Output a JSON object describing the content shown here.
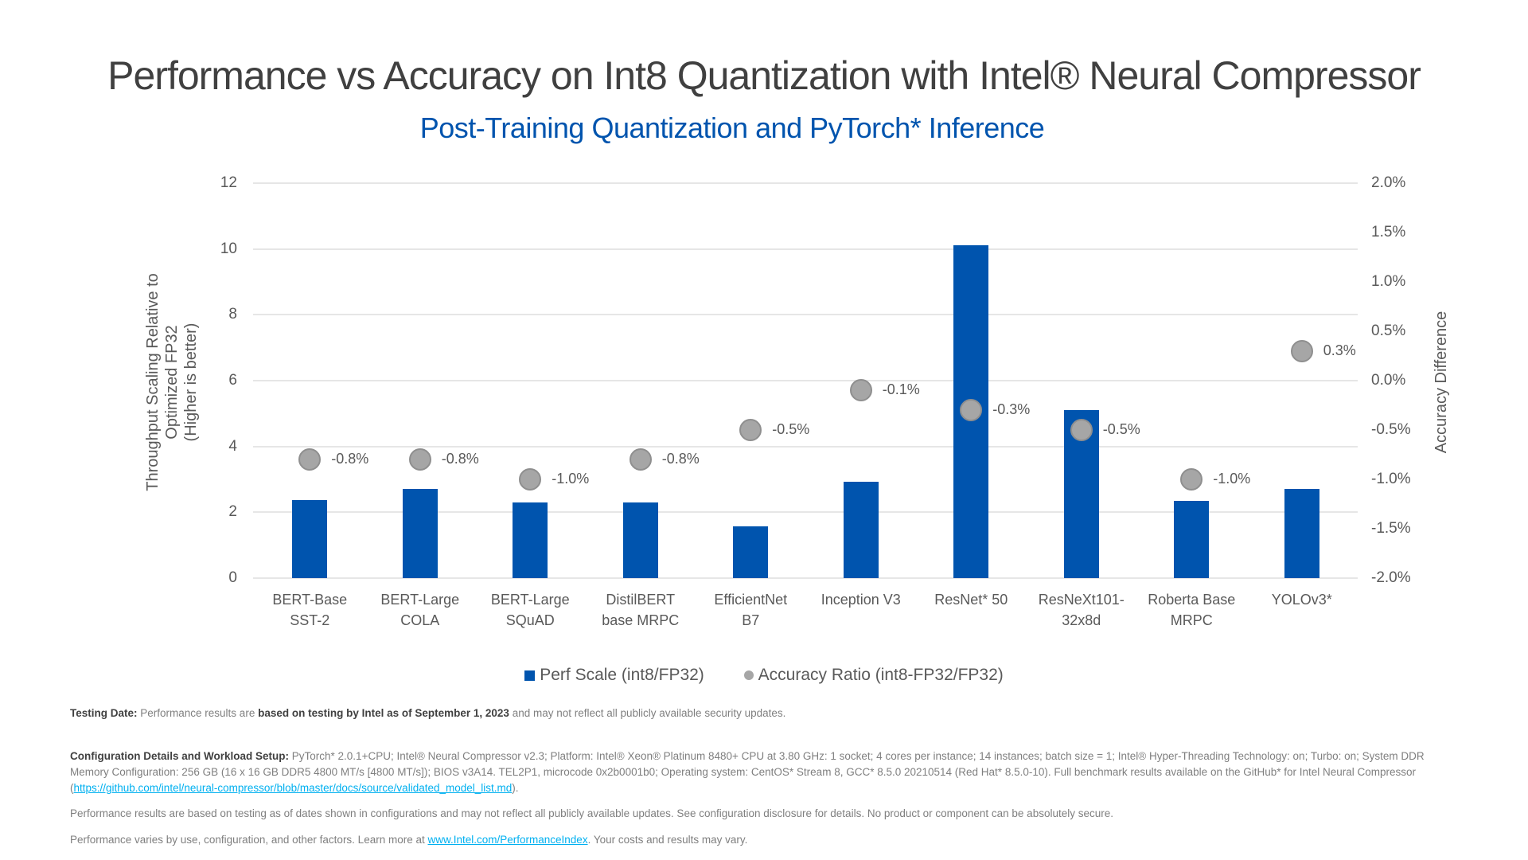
{
  "header": {
    "title": "Performance vs Accuracy on Int8 Quantization with Intel® Neural Compressor",
    "subtitle": "Post-Training Quantization and PyTorch* Inference"
  },
  "chart_data": {
    "type": "bar",
    "title": "Performance vs Accuracy on Int8 Quantization with Intel® Neural Compressor",
    "subtitle": "Post-Training Quantization and PyTorch* Inference",
    "categories": [
      "BERT-Base SST-2",
      "BERT-Large COLA",
      "BERT-Large SQuAD",
      "DistilBERT base MRPC",
      "EfficientNet B7",
      "Inception V3",
      "ResNet* 50",
      "ResNeXt101-32x8d",
      "Roberta Base MRPC",
      "YOLOv3*"
    ],
    "category_lines": [
      [
        "BERT-Base",
        "SST-2"
      ],
      [
        "BERT-Large",
        "COLA"
      ],
      [
        "BERT-Large",
        "SQuAD"
      ],
      [
        "DistilBERT",
        "base MRPC"
      ],
      [
        "EfficientNet",
        "B7"
      ],
      [
        "Inception V3",
        ""
      ],
      [
        "ResNet* 50",
        ""
      ],
      [
        "ResNeXt101-",
        "32x8d"
      ],
      [
        "Roberta Base",
        "MRPC"
      ],
      [
        "YOLOv3*",
        ""
      ]
    ],
    "series": [
      {
        "name": "Perf Scale (int8/FP32)",
        "type": "bar",
        "axis": "left",
        "color": "#0054AE",
        "values": [
          2.36,
          2.7,
          2.29,
          2.31,
          1.57,
          2.92,
          10.12,
          5.11,
          2.34,
          2.7
        ]
      },
      {
        "name": "Accuracy Ratio (int8-FP32/FP32)",
        "type": "scatter",
        "axis": "right",
        "color": "#A6A6A6",
        "values": [
          -0.8,
          -0.8,
          -1.0,
          -0.8,
          -0.5,
          -0.1,
          -0.3,
          -0.5,
          -1.0,
          0.3
        ],
        "labels": [
          "-0.8%",
          "-0.8%",
          "-1.0%",
          "-0.8%",
          "-0.5%",
          "-0.1%",
          "-0.3%",
          "-0.5%",
          "-1.0%",
          "0.3%"
        ]
      }
    ],
    "xlabel": "",
    "ylabel": "Throughput Scaling Relative to Optimized FP32 (Higher is better)",
    "ylabel_lines": [
      "Throughput Scaling Relative to",
      "Optimized FP32",
      "(Higher is better)"
    ],
    "y2label": "Accuracy Difference",
    "ylim": [
      0,
      12
    ],
    "y2lim": [
      -2.0,
      2.0
    ],
    "yticks": [
      "0",
      "2",
      "4",
      "6",
      "8",
      "10",
      "12"
    ],
    "y2ticks": [
      "-2.0%",
      "-1.5%",
      "-1.0%",
      "-0.5%",
      "0.0%",
      "0.5%",
      "1.0%",
      "1.5%",
      "2.0%"
    ],
    "grid": true,
    "legend_position": "bottom"
  },
  "legend": {
    "bar_label": "Perf Scale (int8/FP32)",
    "dot_label": "Accuracy Ratio (int8-FP32/FP32)"
  },
  "footnotes": {
    "testing_label": "Testing Date:",
    "testing_text1": " Performance results are ",
    "testing_bold": "based on testing by Intel as of September 1, 2023",
    "testing_text2": " and may not reflect all publicly available security updates.",
    "config_label": "Configuration Details and Workload Setup:",
    "config_text": " PyTorch* 2.0.1+CPU; Intel® Neural Compressor v2.3; Platform: Intel® Xeon® Platinum 8480+ CPU at 3.80 GHz: 1 socket; 4 cores per instance; 14 instances; batch size = 1; Intel® Hyper-Threading Technology: on; Turbo: on; System DDR Memory Configuration: 256 GB (16 x 16 GB DDR5 4800 MT/s [4800 MT/s]); BIOS v3A14. TEL2P1, microcode 0x2b0001b0; Operating system: CentOS* Stream 8, GCC* 8.5.0 20210514 (Red Hat* 8.5.0-10). Full benchmark results available on the GitHub* for Intel Neural Compressor (",
    "config_link": "https://github.com/intel/neural-compressor/blob/master/docs/source/validated_model_list.md",
    "config_end": ").",
    "disclaimer": "Performance results are based on testing as of dates shown in configurations and may not reflect all publicly available updates. See configuration disclosure for details. No product or component can be absolutely secure.",
    "varies_text": "Performance varies by use, configuration, and other factors. Learn more at ",
    "varies_link": "www.Intel.com/PerformanceIndex",
    "varies_end": ". Your costs and results may vary."
  }
}
